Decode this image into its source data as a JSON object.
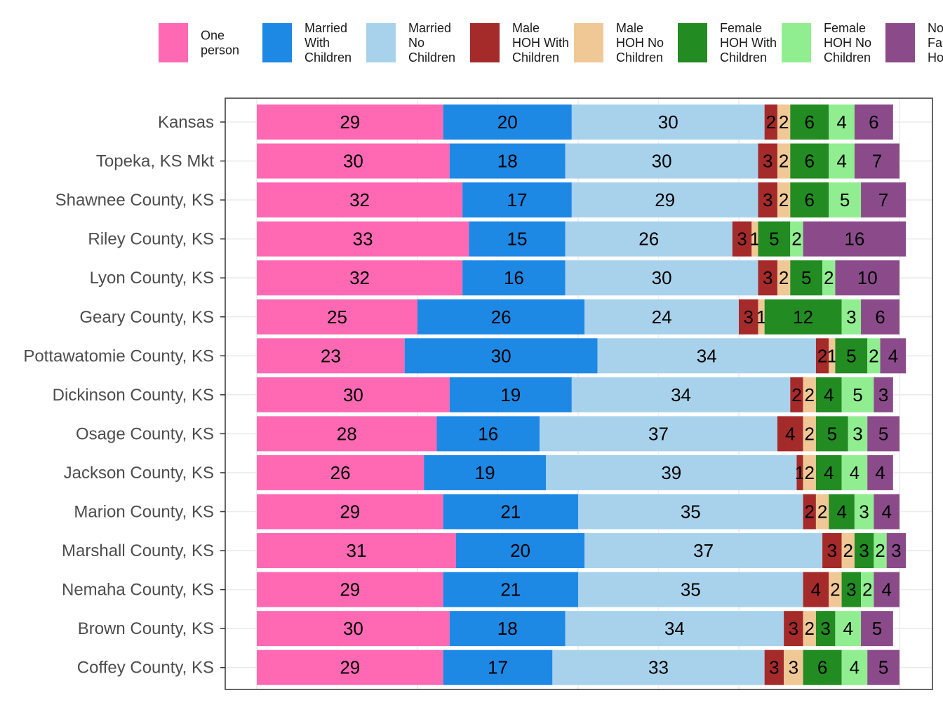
{
  "chart_data": {
    "type": "bar",
    "orientation": "horizontal",
    "stacked": true,
    "title": "",
    "xlabel": "",
    "ylabel": "",
    "xlim": [
      0,
      100
    ],
    "grid": true,
    "legend_position": "top",
    "categories": [
      "Kansas",
      "Topeka, KS Mkt",
      "Shawnee County, KS",
      "Riley County, KS",
      "Lyon County, KS",
      "Geary County, KS",
      "Pottawatomie County, KS",
      "Dickinson County, KS",
      "Osage County, KS",
      "Jackson County, KS",
      "Marion County, KS",
      "Marshall County, KS",
      "Nemaha County, KS",
      "Brown County, KS",
      "Coffey County, KS"
    ],
    "series": [
      {
        "name": "One person",
        "color": "#ff69b4",
        "values": [
          29,
          30,
          32,
          33,
          32,
          25,
          23,
          30,
          28,
          26,
          29,
          31,
          29,
          30,
          29
        ]
      },
      {
        "name": "Married With Children",
        "color": "#1e88e5",
        "values": [
          20,
          18,
          17,
          15,
          16,
          26,
          30,
          19,
          16,
          19,
          21,
          20,
          21,
          18,
          17
        ]
      },
      {
        "name": "Married No Children",
        "color": "#a8d2ec",
        "values": [
          30,
          30,
          29,
          26,
          30,
          24,
          34,
          34,
          37,
          39,
          35,
          37,
          35,
          34,
          33
        ]
      },
      {
        "name": "Male HOH With Children",
        "color": "#a52a2a",
        "values": [
          2,
          3,
          3,
          3,
          3,
          3,
          2,
          2,
          4,
          1,
          2,
          3,
          4,
          3,
          3
        ]
      },
      {
        "name": "Male HOH No Children",
        "color": "#f0c896",
        "values": [
          2,
          2,
          2,
          1,
          2,
          1,
          1,
          2,
          2,
          2,
          2,
          2,
          2,
          2,
          3
        ]
      },
      {
        "name": "Female HOH With Children",
        "color": "#228b22",
        "values": [
          6,
          6,
          6,
          5,
          5,
          12,
          5,
          4,
          5,
          4,
          4,
          3,
          3,
          3,
          6
        ]
      },
      {
        "name": "Female HOH No Children",
        "color": "#90ee90",
        "values": [
          4,
          4,
          5,
          2,
          2,
          3,
          2,
          5,
          3,
          4,
          3,
          2,
          2,
          4,
          4
        ]
      },
      {
        "name": "Non Family Households",
        "color": "#8b4b8b",
        "values": [
          6,
          7,
          7,
          16,
          10,
          6,
          4,
          3,
          5,
          4,
          4,
          3,
          4,
          5,
          5
        ]
      }
    ],
    "legend_label_lines": [
      [
        "One",
        "person"
      ],
      [
        "Married",
        "With",
        "Children"
      ],
      [
        "Married",
        "No",
        "Children"
      ],
      [
        "Male",
        "HOH With",
        "Children"
      ],
      [
        "Male",
        "HOH No",
        "Children"
      ],
      [
        "Female",
        "HOH With",
        "Children"
      ],
      [
        "Female",
        "HOH No",
        "Children"
      ],
      [
        "Non",
        "Family",
        "Households"
      ]
    ]
  }
}
